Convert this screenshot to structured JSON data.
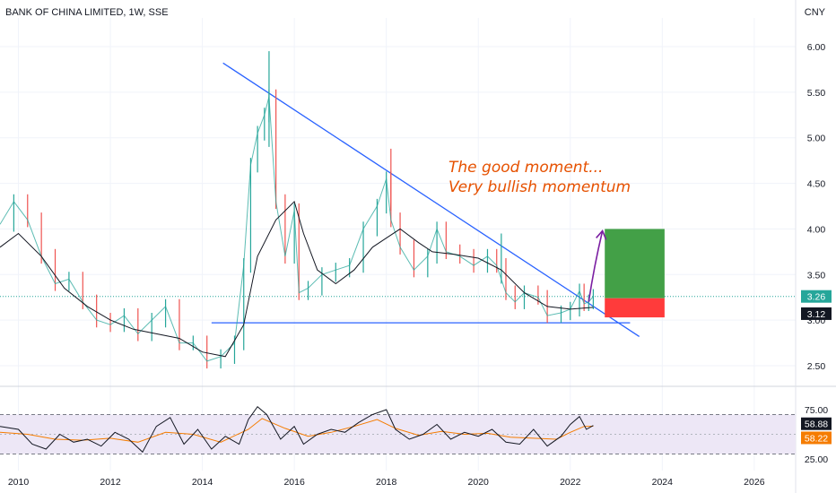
{
  "header": {
    "title": "BANK OF CHINA LIMITED, 1W, SSE",
    "currency": "CNY"
  },
  "colors": {
    "trendline": "#2962ff",
    "price": "#131722",
    "ma": "#131722",
    "rsi": "#131722",
    "rsi_ma": "#f57c00",
    "rsi_band": "#ede7f6",
    "annotation": "#e65100",
    "arrow": "#7b1fa2",
    "target": "#43a047",
    "stop": "#ff3b3b",
    "last_price_badge": "#26a69a",
    "rsi_badge": "#131722",
    "rsi_ma_badge": "#f57c00"
  },
  "annotation": {
    "line1": "The good moment...",
    "line2": "Very bullish momentum"
  },
  "chart_data": [
    {
      "type": "line",
      "title": "BANK OF CHINA LIMITED, 1W, SSE",
      "ylabel": "CNY",
      "x_ticks": [
        "2010",
        "2012",
        "2014",
        "2016",
        "2018",
        "2020",
        "2022",
        "2024",
        "2026"
      ],
      "y_ticks": [
        "6.00",
        "5.50",
        "5.00",
        "4.50",
        "4.00",
        "3.50",
        "3.00",
        "2.50"
      ],
      "xlim": [
        2009.6,
        2026.9
      ],
      "ylim": [
        2.3,
        6.2
      ],
      "series": [
        {
          "x": [
            2009.6,
            2009.9,
            2010.2,
            2010.5,
            2010.8,
            2011.1,
            2011.4,
            2011.7,
            2012.0,
            2012.3,
            2012.6,
            2012.9,
            2013.2,
            2013.5,
            2013.8,
            2014.1,
            2014.4,
            2014.7,
            2014.9,
            2015.05,
            2015.2,
            2015.35,
            2015.45,
            2015.6,
            2015.8,
            2016.0,
            2016.1,
            2016.3,
            2016.6,
            2016.9,
            2017.2,
            2017.5,
            2017.8,
            2018.0,
            2018.1,
            2018.3,
            2018.6,
            2018.9,
            2019.1,
            2019.3,
            2019.6,
            2019.9,
            2020.2,
            2020.4,
            2020.6,
            2020.8,
            2021.0,
            2021.3,
            2021.5,
            2021.8,
            2022.0,
            2022.2,
            2022.3,
            2022.4,
            2022.5
          ],
          "values": [
            4.05,
            4.3,
            4.1,
            3.7,
            3.4,
            3.45,
            3.2,
            3.0,
            2.95,
            3.05,
            2.85,
            3.0,
            3.15,
            2.75,
            2.75,
            2.55,
            2.6,
            2.75,
            3.6,
            4.7,
            5.05,
            5.25,
            5.45,
            4.3,
            3.7,
            4.2,
            3.3,
            3.35,
            3.5,
            3.55,
            3.6,
            4.0,
            4.25,
            4.55,
            4.1,
            3.8,
            3.55,
            3.7,
            4.0,
            3.75,
            3.7,
            3.6,
            3.7,
            3.6,
            3.3,
            3.2,
            3.3,
            3.25,
            3.05,
            3.08,
            3.12,
            3.32,
            3.18,
            3.2,
            3.26
          ]
        },
        {
          "x": [
            2009.6,
            2010.0,
            2010.5,
            2011.0,
            2011.5,
            2012.0,
            2012.5,
            2013.0,
            2013.5,
            2014.0,
            2014.5,
            2014.9,
            2015.2,
            2015.6,
            2016.0,
            2016.2,
            2016.5,
            2016.9,
            2017.3,
            2017.7,
            2018.0,
            2018.3,
            2018.7,
            2019.0,
            2019.5,
            2020.0,
            2020.5,
            2021.0,
            2021.5,
            2022.0,
            2022.5
          ],
          "values": [
            3.8,
            3.95,
            3.7,
            3.35,
            3.15,
            3.0,
            2.9,
            2.85,
            2.8,
            2.65,
            2.6,
            2.95,
            3.7,
            4.1,
            4.3,
            3.95,
            3.55,
            3.4,
            3.55,
            3.8,
            3.9,
            4.0,
            3.85,
            3.75,
            3.72,
            3.68,
            3.55,
            3.3,
            3.15,
            3.12,
            3.14
          ]
        }
      ],
      "last_price": "3.26",
      "ma_value": "3.12",
      "trendline_start": [
        2014.45,
        5.82
      ],
      "trendline_end": [
        2023.5,
        2.82
      ],
      "support_level": 3.0,
      "support_from": 2014.2,
      "support_to": 2023.3,
      "arrow_from": [
        2022.4,
        3.2
      ],
      "arrow_to": [
        2022.7,
        3.98
      ],
      "target_box": {
        "x0": 2022.75,
        "x1": 2024.05,
        "y0": 3.24,
        "y1": 4.0
      },
      "stop_box": {
        "x0": 2022.75,
        "x1": 2024.05,
        "y0": 3.03,
        "y1": 3.24
      }
    },
    {
      "type": "line",
      "y_ticks": [
        "75.00",
        "25.00"
      ],
      "ylim": [
        20,
        85
      ],
      "band": [
        70,
        30
      ],
      "mid_level": 50,
      "rsi_value": "58.88",
      "rsi_ma_value": "58.22",
      "series": [
        {
          "x": [
            2009.6,
            2010.0,
            2010.3,
            2010.6,
            2010.9,
            2011.2,
            2011.5,
            2011.8,
            2012.1,
            2012.4,
            2012.7,
            2013.0,
            2013.3,
            2013.6,
            2013.9,
            2014.2,
            2014.5,
            2014.8,
            2015.0,
            2015.2,
            2015.4,
            2015.7,
            2016.0,
            2016.2,
            2016.5,
            2016.8,
            2017.1,
            2017.4,
            2017.7,
            2018.0,
            2018.2,
            2018.5,
            2018.8,
            2019.1,
            2019.4,
            2019.7,
            2020.0,
            2020.3,
            2020.6,
            2020.9,
            2021.2,
            2021.5,
            2021.8,
            2022.0,
            2022.2,
            2022.35,
            2022.5
          ],
          "values": [
            58,
            55,
            40,
            35,
            50,
            42,
            45,
            38,
            52,
            45,
            32,
            58,
            67,
            40,
            55,
            35,
            48,
            40,
            65,
            78,
            70,
            45,
            58,
            40,
            50,
            55,
            52,
            62,
            70,
            75,
            55,
            45,
            50,
            60,
            45,
            52,
            48,
            55,
            42,
            40,
            55,
            38,
            48,
            60,
            68,
            55,
            58.88
          ]
        },
        {
          "x": [
            2009.6,
            2010.2,
            2010.8,
            2011.4,
            2012.0,
            2012.6,
            2013.2,
            2013.8,
            2014.4,
            2015.0,
            2015.3,
            2015.8,
            2016.3,
            2016.8,
            2017.3,
            2017.8,
            2018.2,
            2018.7,
            2019.2,
            2019.7,
            2020.2,
            2020.7,
            2021.2,
            2021.7,
            2022.0,
            2022.3,
            2022.5
          ],
          "values": [
            52,
            50,
            45,
            44,
            46,
            42,
            52,
            50,
            42,
            55,
            66,
            56,
            48,
            52,
            58,
            65,
            56,
            49,
            53,
            50,
            51,
            47,
            46,
            45,
            52,
            58,
            58.22
          ]
        }
      ]
    }
  ]
}
